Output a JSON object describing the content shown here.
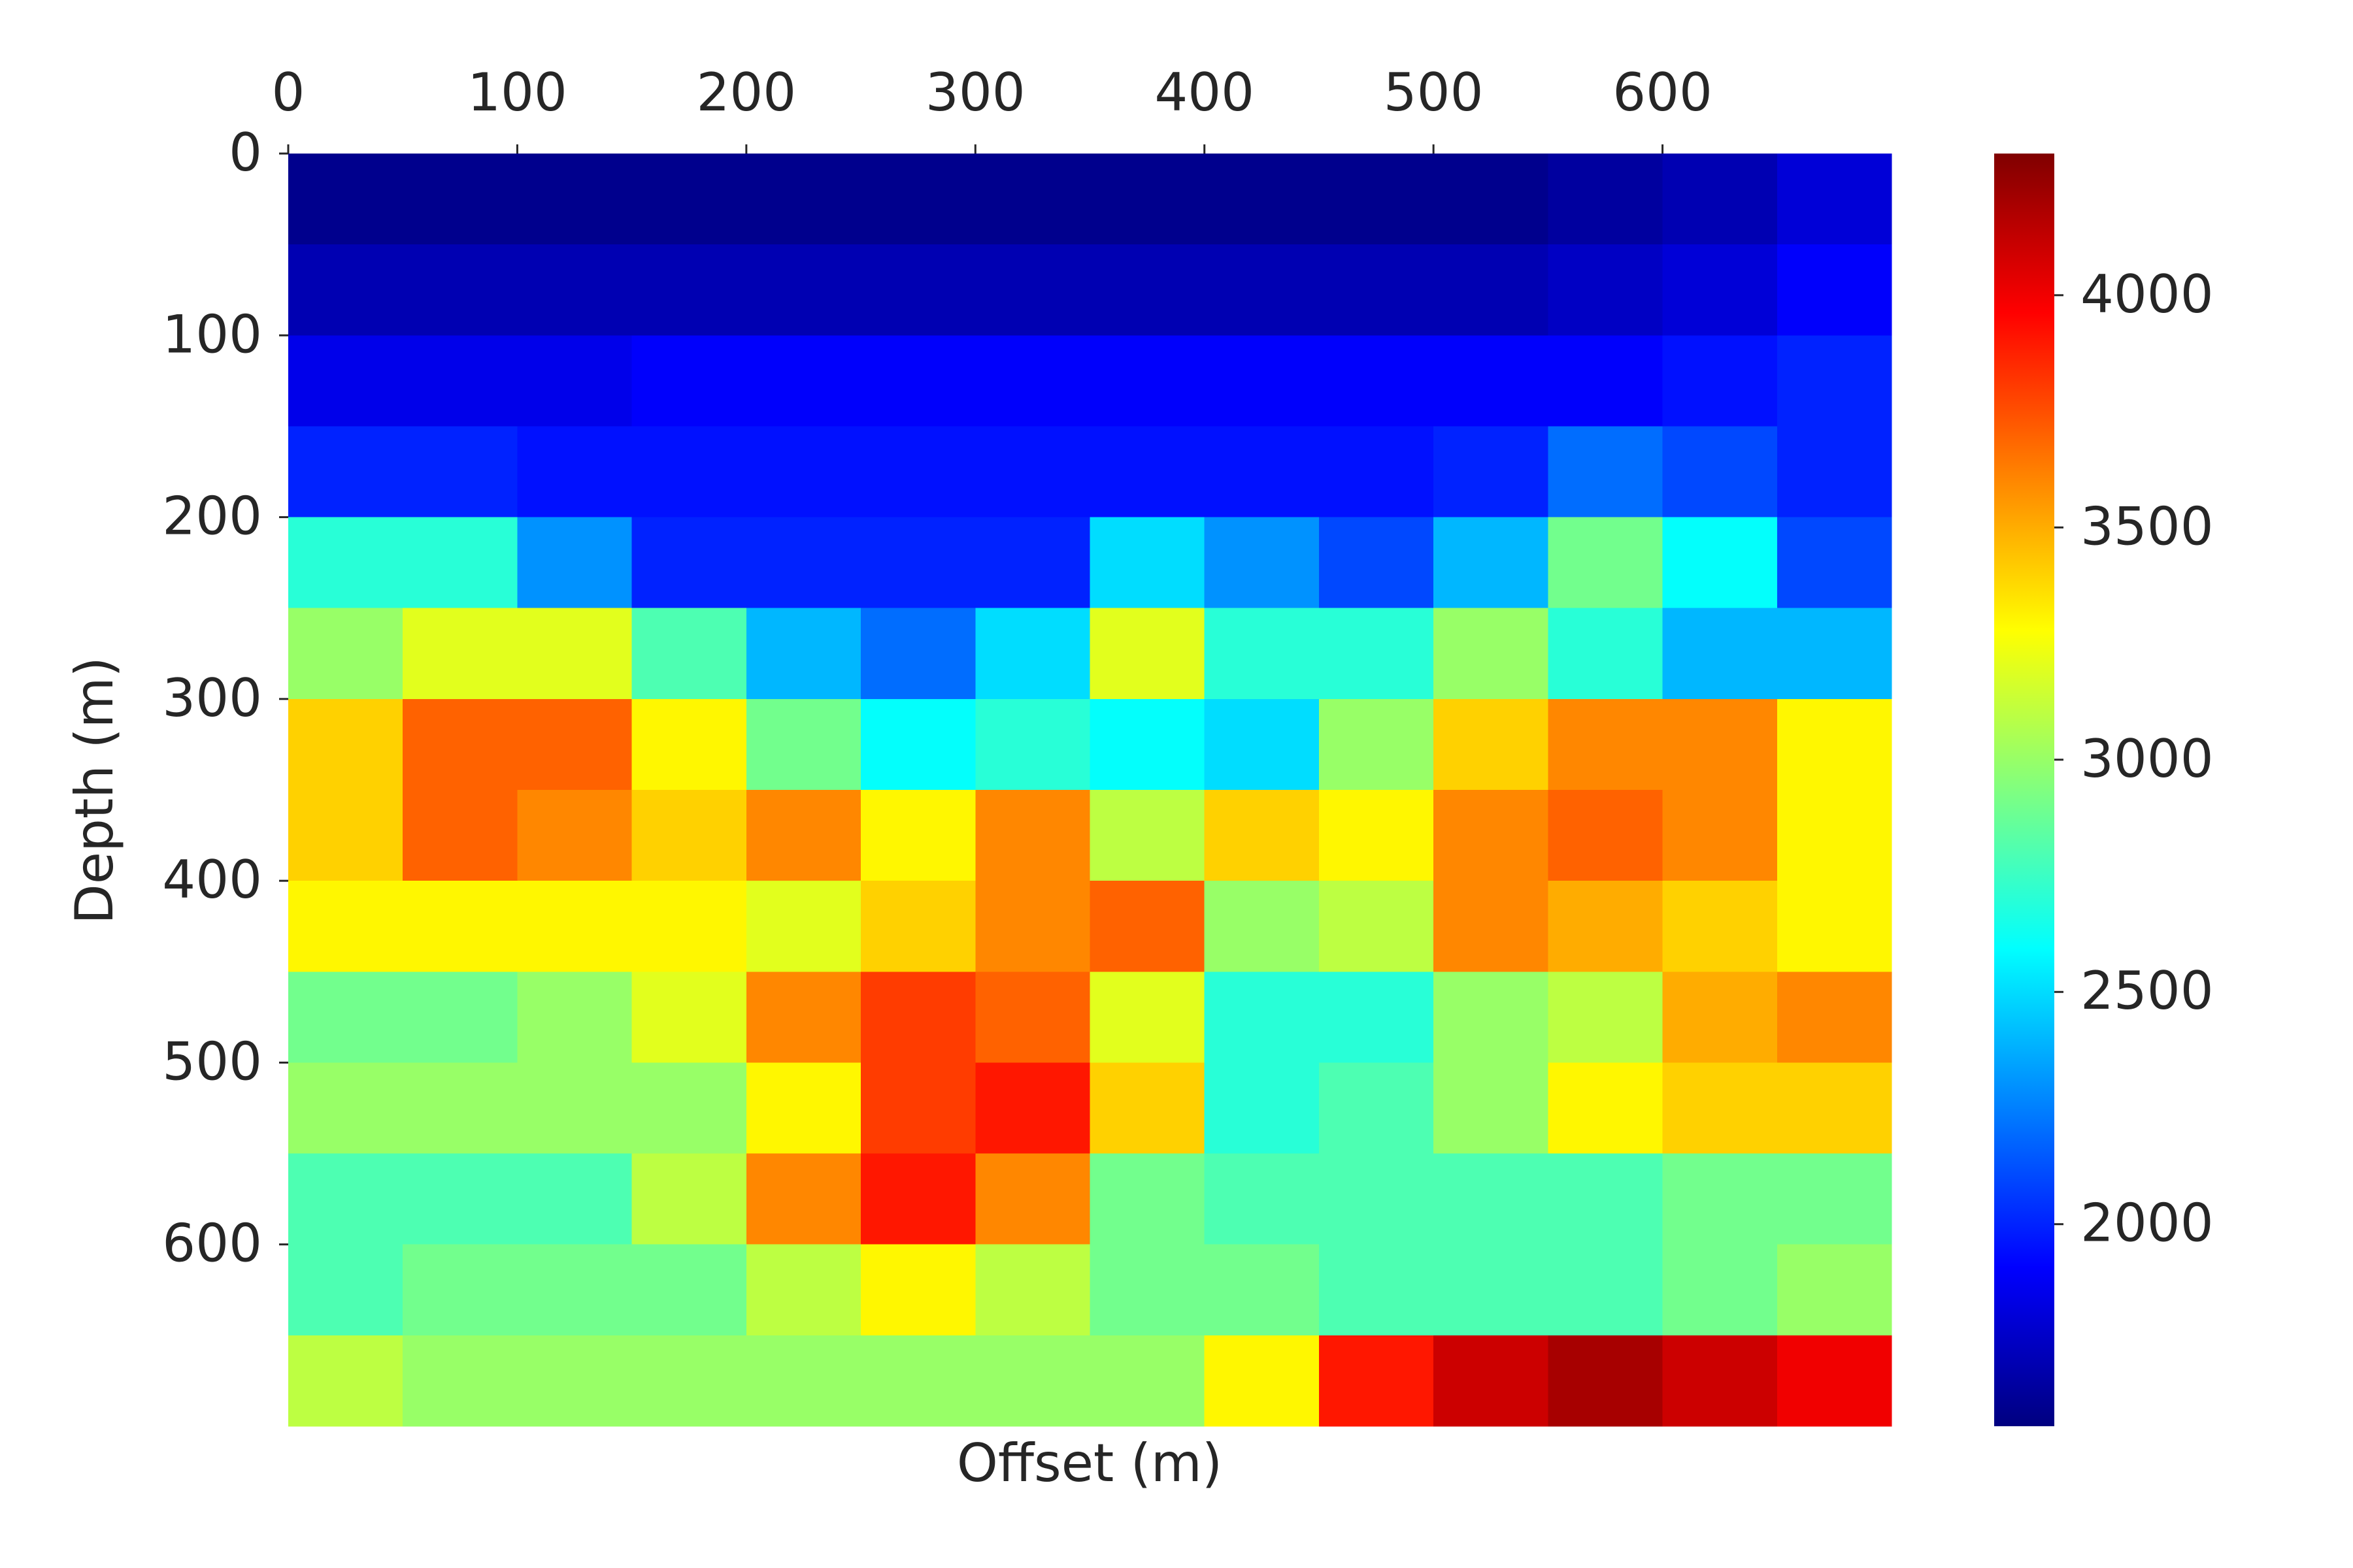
{
  "chart_data": {
    "type": "heatmap",
    "xlabel": "Offset (m)",
    "ylabel": "Depth (m)",
    "xlim": [
      0,
      700
    ],
    "ylim": [
      0,
      700
    ],
    "y_inverted": true,
    "xaxis_position": "top",
    "xticks": [
      0,
      100,
      200,
      300,
      400,
      500,
      600
    ],
    "yticks": [
      0,
      100,
      200,
      300,
      400,
      500,
      600
    ],
    "colormap": "jet",
    "clim": [
      1565,
      4305
    ],
    "cticks": [
      2000,
      2500,
      3000,
      3500,
      4000
    ],
    "values": [
      [
        1600,
        1600,
        1600,
        1600,
        1600,
        1600,
        1600,
        1600,
        1600,
        1600,
        1600,
        1650,
        1700,
        1800
      ],
      [
        1700,
        1700,
        1700,
        1700,
        1700,
        1700,
        1700,
        1700,
        1700,
        1700,
        1700,
        1750,
        1800,
        1900
      ],
      [
        1850,
        1850,
        1850,
        1900,
        1900,
        1900,
        1900,
        1900,
        1900,
        1900,
        1900,
        1900,
        1950,
        2000
      ],
      [
        2000,
        2000,
        1950,
        1950,
        1950,
        1950,
        1950,
        1950,
        1950,
        1950,
        2000,
        2200,
        2100,
        2000
      ],
      [
        2700,
        2700,
        2300,
        2000,
        2000,
        2000,
        2000,
        2500,
        2300,
        2100,
        2400,
        2900,
        2600,
        2100
      ],
      [
        3000,
        3200,
        3200,
        2800,
        2400,
        2200,
        2500,
        3200,
        2700,
        2700,
        3000,
        2700,
        2400,
        2400
      ],
      [
        3400,
        3700,
        3700,
        3300,
        2900,
        2600,
        2700,
        2600,
        2500,
        3000,
        3400,
        3600,
        3600,
        3300
      ],
      [
        3400,
        3700,
        3600,
        3400,
        3600,
        3300,
        3600,
        3100,
        3400,
        3300,
        3600,
        3700,
        3600,
        3300
      ],
      [
        3300,
        3300,
        3300,
        3300,
        3200,
        3400,
        3600,
        3700,
        3000,
        3100,
        3600,
        3500,
        3400,
        3300
      ],
      [
        2900,
        2900,
        3000,
        3200,
        3600,
        3800,
        3700,
        3200,
        2700,
        2700,
        3000,
        3100,
        3500,
        3600
      ],
      [
        3000,
        3000,
        3000,
        3000,
        3300,
        3800,
        3900,
        3400,
        2700,
        2800,
        3000,
        3300,
        3400,
        3400
      ],
      [
        2800,
        2800,
        2800,
        3100,
        3600,
        3900,
        3600,
        2900,
        2800,
        2800,
        2800,
        2800,
        2900,
        2900
      ],
      [
        2800,
        2900,
        2900,
        2900,
        3100,
        3300,
        3100,
        2900,
        2900,
        2800,
        2800,
        2800,
        2900,
        3000
      ],
      [
        3100,
        3000,
        3000,
        3000,
        3000,
        3000,
        3000,
        3000,
        3300,
        3900,
        4100,
        4200,
        4100,
        4000
      ]
    ]
  }
}
